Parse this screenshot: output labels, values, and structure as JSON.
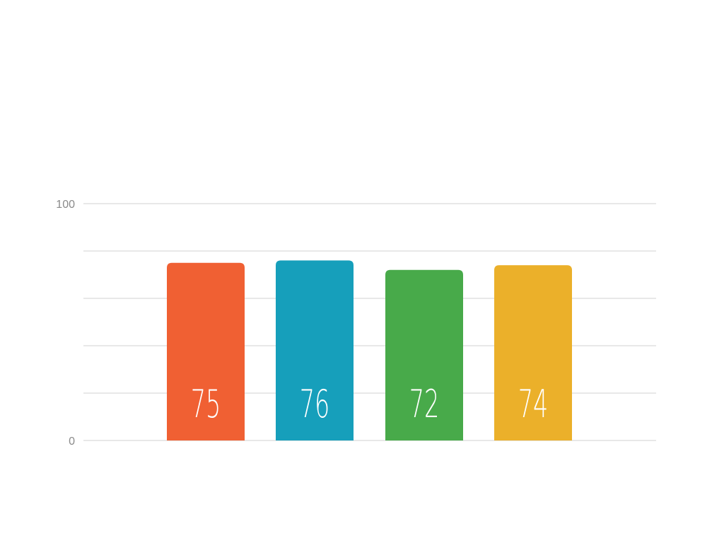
{
  "chart_data": {
    "type": "bar",
    "title": "",
    "xlabel": "",
    "ylabel": "",
    "categories": [
      "",
      "",
      "",
      ""
    ],
    "values": [
      75,
      76,
      72,
      74
    ],
    "data_labels": [
      "75",
      "76",
      "72",
      "74"
    ],
    "colors": [
      "#F06033",
      "#169FBB",
      "#48AA4A",
      "#EBB02A"
    ],
    "ylim": [
      0,
      100
    ],
    "yticks_labeled": [
      "0",
      "100"
    ],
    "grid_step": 20,
    "grid": true,
    "legend": "none"
  }
}
